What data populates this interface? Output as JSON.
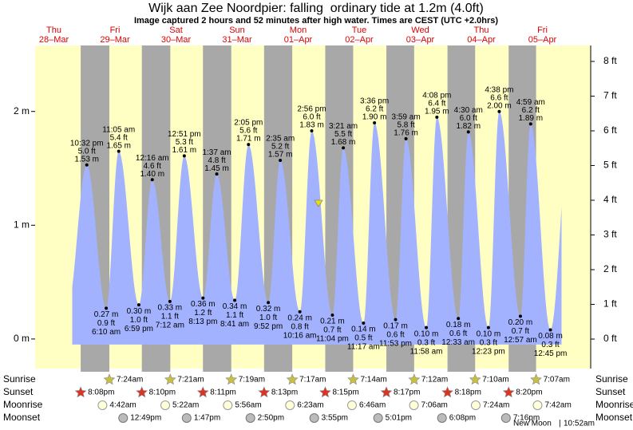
{
  "chart_data": {
    "type": "area",
    "title": "Wijk aan Zee Noordpier: falling  ordinary tide at 1.2m (4.0ft)",
    "subtitle": "Image captured 2 hours and 52 minutes after high water. Times are CEST (UTC +2.0hrs)",
    "color": "#a3b2ff",
    "day_color": "#ffffc4",
    "night_color": "#a8a8a8",
    "ylim": [
      -0.26,
      2.58
    ],
    "yticks": [
      {
        "value": 0,
        "label": "0 m"
      },
      {
        "value": 1,
        "label": "1 m"
      },
      {
        "value": 2,
        "label": "2 m"
      }
    ],
    "y2lim": [
      -0.85,
      8.46
    ],
    "y2ticks": [
      {
        "value": 0,
        "label": "0 ft"
      },
      {
        "value": 1,
        "label": "1 ft"
      },
      {
        "value": 2,
        "label": "2 ft"
      },
      {
        "value": 3,
        "label": "3 ft"
      },
      {
        "value": 4,
        "label": "4 ft"
      },
      {
        "value": 5,
        "label": "5 ft"
      },
      {
        "value": 6,
        "label": "6 ft"
      },
      {
        "value": 7,
        "label": "7 ft"
      },
      {
        "value": 8,
        "label": "8 ft"
      }
    ],
    "days": [
      {
        "name": "Thu",
        "date": "28–Mar",
        "sunset": "8:08pm",
        "tides": [
          {
            "time": "10:32 pm",
            "ft": {
              "value": 5.0,
              "label": "5.0 ft"
            },
            "m": {
              "value": 1.53,
              "label": "1.53 m"
            }
          }
        ]
      },
      {
        "name": "Fri",
        "date": "29–Mar",
        "sunrise": "7:24am",
        "sunset": "8:10pm",
        "moonrise": "4:42am",
        "moonset": "12:49pm",
        "tides": [
          {
            "time": "6:10 am",
            "ft": {
              "value": 0.9,
              "label": "0.9 ft"
            },
            "m": {
              "value": 0.27,
              "label": "0.27 m"
            }
          },
          {
            "time": "11:05 am",
            "ft": {
              "value": 5.4,
              "label": "5.4 ft"
            },
            "m": {
              "value": 1.65,
              "label": "1.65 m"
            }
          },
          {
            "time": "6:59 pm",
            "ft": {
              "value": 1.0,
              "label": "1.0 ft"
            },
            "m": {
              "value": 0.3,
              "label": "0.30 m"
            }
          }
        ]
      },
      {
        "name": "Sat",
        "date": "30–Mar",
        "sunrise": "7:21am",
        "sunset": "8:11pm",
        "moonrise": "5:22am",
        "moonset": "1:47pm",
        "tides": [
          {
            "time": "12:16 am",
            "ft": {
              "value": 4.6,
              "label": "4.6 ft"
            },
            "m": {
              "value": 1.4,
              "label": "1.40 m"
            }
          },
          {
            "time": "7:12 am",
            "ft": {
              "value": 1.1,
              "label": "1.1 ft"
            },
            "m": {
              "value": 0.33,
              "label": "0.33 m"
            }
          },
          {
            "time": "12:51 pm",
            "ft": {
              "value": 5.3,
              "label": "5.3 ft"
            },
            "m": {
              "value": 1.61,
              "label": "1.61 m"
            }
          },
          {
            "time": "8:13 pm",
            "ft": {
              "value": 1.2,
              "label": "1.2 ft"
            },
            "m": {
              "value": 0.36,
              "label": "0.36 m"
            }
          }
        ]
      },
      {
        "name": "Sun",
        "date": "31–Mar",
        "sunrise": "7:19am",
        "sunset": "8:13pm",
        "moonrise": "5:56am",
        "moonset": "2:50pm",
        "tides": [
          {
            "time": "1:37 am",
            "ft": {
              "value": 4.8,
              "label": "4.8 ft"
            },
            "m": {
              "value": 1.45,
              "label": "1.45 m"
            }
          },
          {
            "time": "8:41 am",
            "ft": {
              "value": 1.1,
              "label": "1.1 ft"
            },
            "m": {
              "value": 0.34,
              "label": "0.34 m"
            }
          },
          {
            "time": "2:05 pm",
            "ft": {
              "value": 5.6,
              "label": "5.6 ft"
            },
            "m": {
              "value": 1.71,
              "label": "1.71 m"
            }
          },
          {
            "time": "9:52 pm",
            "ft": {
              "value": 1.0,
              "label": "1.0 ft"
            },
            "m": {
              "value": 0.32,
              "label": "0.32 m"
            }
          }
        ]
      },
      {
        "name": "Mon",
        "date": "01–Apr",
        "sunrise": "7:17am",
        "sunset": "8:15pm",
        "moonrise": "6:23am",
        "moonset": "3:55pm",
        "tides": [
          {
            "time": "2:35 am",
            "ft": {
              "value": 5.2,
              "label": "5.2 ft"
            },
            "m": {
              "value": 1.57,
              "label": "1.57 m"
            }
          },
          {
            "time": "10:16 am",
            "ft": {
              "value": 0.8,
              "label": "0.8 ft"
            },
            "m": {
              "value": 0.24,
              "label": "0.24 m"
            }
          },
          {
            "time": "2:56 pm",
            "ft": {
              "value": 6.0,
              "label": "6.0 ft"
            },
            "m": {
              "value": 1.83,
              "label": "1.83 m"
            }
          },
          {
            "time": "11:04 pm",
            "ft": {
              "value": 0.7,
              "label": "0.7 ft"
            },
            "m": {
              "value": 0.21,
              "label": "0.21 m"
            }
          }
        ]
      },
      {
        "name": "Tue",
        "date": "02–Apr",
        "sunrise": "7:14am",
        "sunset": "8:17pm",
        "moonrise": "6:46am",
        "moonset": "5:01pm",
        "tides": [
          {
            "time": "3:21 am",
            "ft": {
              "value": 5.5,
              "label": "5.5 ft"
            },
            "m": {
              "value": 1.68,
              "label": "1.68 m"
            }
          },
          {
            "time": "11:17 am",
            "ft": {
              "value": 0.5,
              "label": "0.5 ft"
            },
            "m": {
              "value": 0.14,
              "label": "0.14 m"
            }
          },
          {
            "time": "3:36 pm",
            "ft": {
              "value": 6.2,
              "label": "6.2 ft"
            },
            "m": {
              "value": 1.9,
              "label": "1.90 m"
            }
          },
          {
            "time": "11:53 pm",
            "ft": {
              "value": 0.6,
              "label": "0.6 ft"
            },
            "m": {
              "value": 0.17,
              "label": "0.17 m"
            }
          }
        ]
      },
      {
        "name": "Wed",
        "date": "03–Apr",
        "sunrise": "7:12am",
        "sunset": "8:18pm",
        "moonrise": "7:06am",
        "moonset": "6:08pm",
        "tides": [
          {
            "time": "3:59 am",
            "ft": {
              "value": 5.8,
              "label": "5.8 ft"
            },
            "m": {
              "value": 1.76,
              "label": "1.76 m"
            }
          },
          {
            "time": "11:58 am",
            "ft": {
              "value": 0.3,
              "label": "0.3 ft"
            },
            "m": {
              "value": 0.1,
              "label": "0.10 m"
            }
          },
          {
            "time": "4:08 pm",
            "ft": {
              "value": 6.4,
              "label": "6.4 ft"
            },
            "m": {
              "value": 1.95,
              "label": "1.95 m"
            }
          }
        ]
      },
      {
        "name": "Thu",
        "date": "04–Apr",
        "sunrise": "7:10am",
        "sunset": "8:20pm",
        "moonrise": "7:24am",
        "moonset": "7:16pm",
        "tides": [
          {
            "time": "12:33 am",
            "ft": {
              "value": 0.6,
              "label": "0.6 ft"
            },
            "m": {
              "value": 0.18,
              "label": "0.18 m"
            }
          },
          {
            "time": "4:30 am",
            "ft": {
              "value": 6.0,
              "label": "6.0 ft"
            },
            "m": {
              "value": 1.82,
              "label": "1.82 m"
            }
          },
          {
            "time": "12:23 pm",
            "ft": {
              "value": 0.3,
              "label": "0.3 ft"
            },
            "m": {
              "value": 0.1,
              "label": "0.10 m"
            }
          },
          {
            "time": "4:38 pm",
            "ft": {
              "value": 6.6,
              "label": "6.6 ft"
            },
            "m": {
              "value": 2.0,
              "label": "2.00 m"
            }
          }
        ]
      },
      {
        "name": "Fri",
        "date": "05–Apr",
        "sunrise": "7:07am",
        "moonrise": "7:42am",
        "tides": [
          {
            "time": "12:57 am",
            "ft": {
              "value": 0.7,
              "label": "0.7 ft"
            },
            "m": {
              "value": 0.2,
              "label": "0.20 m"
            }
          },
          {
            "time": "4:59 am",
            "ft": {
              "value": 6.2,
              "label": "6.2 ft"
            },
            "m": {
              "value": 1.89,
              "label": "1.89 m"
            }
          },
          {
            "time": "12:45 pm",
            "ft": {
              "value": 0.3,
              "label": "0.3 ft"
            },
            "m": {
              "value": 0.08,
              "label": "0.08 m"
            }
          }
        ]
      }
    ],
    "rows": {
      "sunrise": "Sunrise",
      "sunset": "Sunset",
      "moonrise": "Moonrise",
      "moonset": "Moonset"
    },
    "moon_phase": {
      "name": "New Moon",
      "time": "10:52am"
    }
  }
}
